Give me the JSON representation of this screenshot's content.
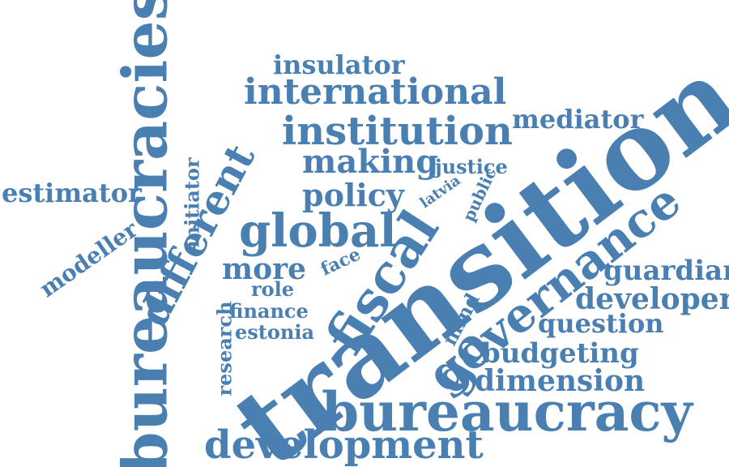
{
  "colors": {
    "word": "#4a7fb2",
    "background": "#ffffff"
  },
  "words": {
    "transition": "transition",
    "bureaucracies": "bureaucracies",
    "bureaucracy": "bureaucracy",
    "governance": "governance",
    "fiscal": "fiscal",
    "institution": "institution",
    "international": "international",
    "development": "development",
    "different": "different",
    "global": "global",
    "policy": "policy",
    "making": "making",
    "insulator": "insulator",
    "mediator": "mediator",
    "estimator": "estimator",
    "modeller": "modeller",
    "initiator": "initiator",
    "more": "more",
    "role": "role",
    "finance": "finance",
    "estonia": "estonia",
    "research": "research",
    "face": "face",
    "justice": "justice",
    "latvia": "latvia",
    "public": "public",
    "guardian": "guardian",
    "developer": "developer",
    "question": "question",
    "mind": "mind",
    "go": "go",
    "budgeting": "budgeting",
    "dimension": "dimension"
  }
}
